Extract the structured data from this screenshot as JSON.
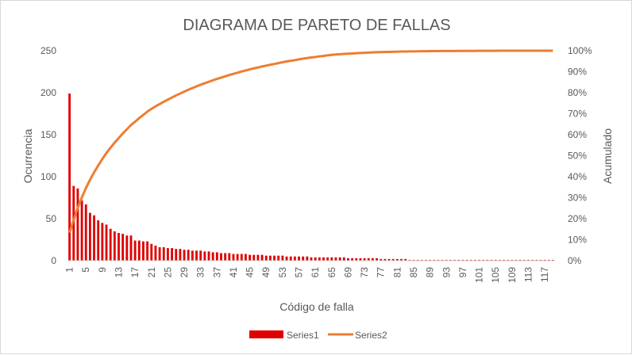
{
  "chart_data": {
    "type": "bar",
    "title": "DIAGRAMA DE PARETO DE FALLAS",
    "xlabel": "Código de falla",
    "ylabel": "Ocurrencia",
    "y2label": "Acumulado",
    "ylim": [
      0,
      250
    ],
    "y2lim": [
      0,
      1
    ],
    "yticks": [
      "0",
      "50",
      "100",
      "150",
      "200",
      "250"
    ],
    "y2ticks": [
      "0%",
      "10%",
      "20%",
      "30%",
      "40%",
      "50%",
      "60%",
      "70%",
      "80%",
      "90%",
      "100%"
    ],
    "xtick_labels": [
      "1",
      "5",
      "9",
      "13",
      "17",
      "21",
      "25",
      "29",
      "33",
      "37",
      "41",
      "45",
      "49",
      "53",
      "57",
      "61",
      "65",
      "69",
      "73",
      "77",
      "81",
      "85",
      "89",
      "93",
      "97",
      "101",
      "105",
      "109",
      "113",
      "117"
    ],
    "legend_position": "bottom",
    "grid": false,
    "x": [
      1,
      2,
      3,
      4,
      5,
      6,
      7,
      8,
      9,
      10,
      11,
      12,
      13,
      14,
      15,
      16,
      17,
      18,
      19,
      20,
      21,
      22,
      23,
      24,
      25,
      26,
      27,
      28,
      29,
      30,
      31,
      32,
      33,
      34,
      35,
      36,
      37,
      38,
      39,
      40,
      41,
      42,
      43,
      44,
      45,
      46,
      47,
      48,
      49,
      50,
      51,
      52,
      53,
      54,
      55,
      56,
      57,
      58,
      59,
      60,
      61,
      62,
      63,
      64,
      65,
      66,
      67,
      68,
      69,
      70,
      71,
      72,
      73,
      74,
      75,
      76,
      77,
      78,
      79,
      80,
      81,
      82,
      83,
      84,
      85,
      86,
      87,
      88,
      89,
      90,
      91,
      92,
      93,
      94,
      95,
      96,
      97,
      98,
      99,
      100,
      101,
      102,
      103,
      104,
      105,
      106,
      107,
      108,
      109,
      110,
      111,
      112,
      113,
      114,
      115,
      116,
      117,
      118,
      119
    ],
    "series": [
      {
        "name": "Series1",
        "axis": "left",
        "color": "#e00000",
        "values": [
          199,
          89,
          86,
          72,
          67,
          57,
          54,
          48,
          45,
          43,
          38,
          35,
          33,
          32,
          30,
          30,
          24,
          24,
          23,
          23,
          20,
          18,
          16,
          16,
          15,
          15,
          14,
          14,
          13,
          13,
          12,
          12,
          12,
          11,
          11,
          10,
          10,
          9,
          9,
          9,
          8,
          8,
          8,
          8,
          7,
          7,
          7,
          7,
          6,
          6,
          6,
          6,
          6,
          5,
          5,
          5,
          5,
          5,
          5,
          4,
          4,
          4,
          4,
          4,
          4,
          4,
          4,
          4,
          3,
          3,
          3,
          3,
          3,
          3,
          3,
          3,
          2,
          2,
          2,
          2,
          2,
          2,
          2,
          1,
          1,
          1,
          1,
          1,
          1,
          1,
          1,
          1,
          1,
          1,
          1,
          1,
          1,
          1,
          1,
          1,
          1,
          1,
          1,
          1,
          1,
          1,
          1,
          1,
          1,
          1,
          1,
          1,
          1,
          1,
          1,
          1,
          1,
          1,
          1
        ]
      },
      {
        "name": "Series2",
        "axis": "right",
        "color": "#ed7d31",
        "values": [
          0.134,
          0.194,
          0.252,
          0.301,
          0.346,
          0.385,
          0.421,
          0.453,
          0.484,
          0.513,
          0.538,
          0.562,
          0.584,
          0.606,
          0.626,
          0.646,
          0.662,
          0.679,
          0.694,
          0.71,
          0.723,
          0.735,
          0.746,
          0.757,
          0.767,
          0.777,
          0.787,
          0.796,
          0.805,
          0.814,
          0.822,
          0.83,
          0.838,
          0.845,
          0.852,
          0.859,
          0.866,
          0.872,
          0.878,
          0.884,
          0.89,
          0.895,
          0.901,
          0.906,
          0.911,
          0.916,
          0.92,
          0.925,
          0.929,
          0.933,
          0.937,
          0.941,
          0.945,
          0.949,
          0.952,
          0.955,
          0.959,
          0.962,
          0.965,
          0.968,
          0.97,
          0.973,
          0.975,
          0.978,
          0.98,
          0.982,
          0.983,
          0.985,
          0.986,
          0.987,
          0.988,
          0.989,
          0.99,
          0.991,
          0.992,
          0.993,
          0.9935,
          0.994,
          0.9945,
          0.995,
          0.9955,
          0.996,
          0.9963,
          0.9966,
          0.9969,
          0.9972,
          0.9975,
          0.9977,
          0.9979,
          0.9981,
          0.9983,
          0.9985,
          0.9986,
          0.9987,
          0.9988,
          0.9989,
          0.999,
          0.9991,
          0.9992,
          0.9993,
          0.9994,
          0.9995,
          0.9996,
          0.9997,
          0.9997,
          0.9998,
          0.9998,
          0.9999,
          0.9999,
          0.9999,
          1,
          1,
          1,
          1,
          1,
          1,
          1,
          1,
          1
        ]
      }
    ]
  }
}
